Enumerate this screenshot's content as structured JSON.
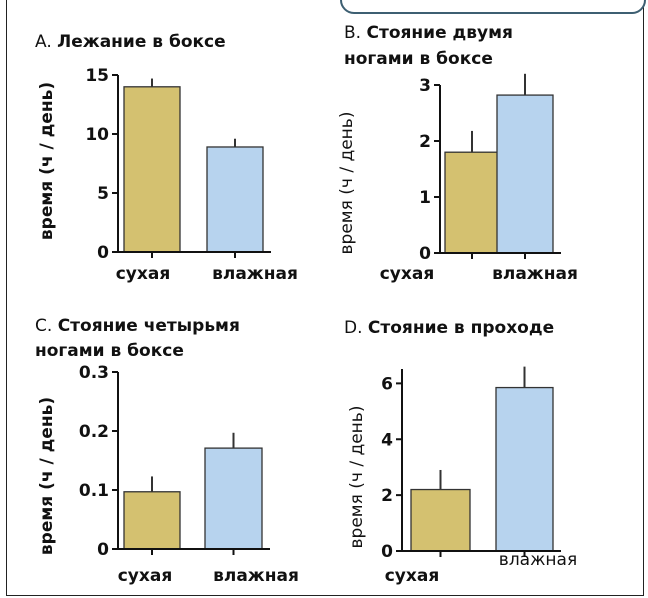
{
  "chart_data": [
    {
      "type": "bar",
      "letter": "A.",
      "title_lines": [
        "Лежание в боксе"
      ],
      "ylabel": "время (ч / день)",
      "ylabel_weight": "bold",
      "categories": [
        "сухая",
        "влажная"
      ],
      "values": [
        14.0,
        8.9
      ],
      "errors": [
        0.7,
        0.7
      ],
      "ylim": [
        0,
        15
      ],
      "yticks": [
        0,
        5,
        10,
        15
      ],
      "ytick_labels": [
        "0",
        "5",
        "10",
        "15"
      ],
      "colors": [
        "#d4c170",
        "#b7d3ee"
      ]
    },
    {
      "type": "bar",
      "letter": "B.",
      "title_lines": [
        "Стояние двумя",
        "ногами в боксе"
      ],
      "ylabel": "время (ч / день)",
      "ylabel_weight": "normal",
      "categories": [
        "сухая",
        "влажная"
      ],
      "values": [
        1.8,
        2.82
      ],
      "errors": [
        0.38,
        0.38
      ],
      "ylim": [
        0,
        3
      ],
      "yticks": [
        0,
        1,
        2,
        3
      ],
      "ytick_labels": [
        "0",
        "1",
        "2",
        "3"
      ],
      "colors": [
        "#d4c170",
        "#b7d3ee"
      ]
    },
    {
      "type": "bar",
      "letter": "C.",
      "title_lines": [
        "Стояние четырьмя",
        "ногами в боксе"
      ],
      "ylabel": "время (ч / день)",
      "ylabel_weight": "bold",
      "categories": [
        "сухая",
        "влажная"
      ],
      "values": [
        0.097,
        0.171
      ],
      "errors": [
        0.026,
        0.026
      ],
      "ylim": [
        0,
        0.3
      ],
      "yticks": [
        0,
        0.1,
        0.2,
        0.3
      ],
      "ytick_labels": [
        "0",
        "0.1",
        "0.2",
        "0.3"
      ],
      "colors": [
        "#d4c170",
        "#b7d3ee"
      ]
    },
    {
      "type": "bar",
      "letter": "D.",
      "title_lines": [
        "Стояние в проходе"
      ],
      "ylabel": "время (ч / день)",
      "ylabel_weight": "normal",
      "categories": [
        "сухая",
        "влажная"
      ],
      "values": [
        2.2,
        5.85
      ],
      "errors": [
        0.7,
        0.75
      ],
      "ylim": [
        0,
        6.3
      ],
      "yticks": [
        0,
        2,
        4,
        6
      ],
      "ytick_labels": [
        "0",
        "2",
        "4",
        "6"
      ],
      "colors": [
        "#d4c170",
        "#b7d3ee"
      ]
    }
  ]
}
